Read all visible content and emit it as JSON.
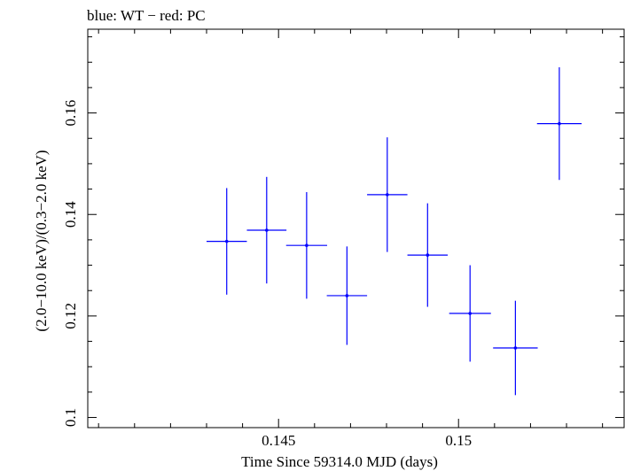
{
  "chart_data": {
    "type": "scatter",
    "title": "blue: WT − red: PC",
    "xlabel": "Time Since 59314.0 MJD (days)",
    "ylabel": "(2.0−10.0 keV)/(0.3−2.0 keV)",
    "xlim": [
      0.1397,
      0.1546
    ],
    "ylim": [
      0.098,
      0.1765
    ],
    "x_ticks": [
      {
        "value": 0.145,
        "label": "0.145"
      },
      {
        "value": 0.15,
        "label": "0.15"
      }
    ],
    "y_ticks": [
      {
        "value": 0.1,
        "label": "0.1"
      },
      {
        "value": 0.12,
        "label": "0.12"
      },
      {
        "value": 0.14,
        "label": "0.14"
      },
      {
        "value": 0.16,
        "label": "0.16"
      }
    ],
    "grid": false,
    "series": [
      {
        "name": "WT",
        "color": "#0000ff",
        "points": [
          {
            "x": 0.14356,
            "xerr": 0.00056,
            "y": 0.1347,
            "yerr": 0.0105
          },
          {
            "x": 0.14467,
            "xerr": 0.00055,
            "y": 0.1369,
            "yerr": 0.0105
          },
          {
            "x": 0.14578,
            "xerr": 0.00057,
            "y": 0.1339,
            "yerr": 0.0105
          },
          {
            "x": 0.1469,
            "xerr": 0.00056,
            "y": 0.124,
            "yerr": 0.0097
          },
          {
            "x": 0.14802,
            "xerr": 0.00056,
            "y": 0.1439,
            "yerr": 0.0113
          },
          {
            "x": 0.14914,
            "xerr": 0.00056,
            "y": 0.132,
            "yerr": 0.0102
          },
          {
            "x": 0.15032,
            "xerr": 0.00058,
            "y": 0.1205,
            "yerr": 0.0095
          },
          {
            "x": 0.15158,
            "xerr": 0.00062,
            "y": 0.1137,
            "yerr": 0.0093
          },
          {
            "x": 0.1528,
            "xerr": 0.00062,
            "y": 0.1579,
            "yerr": 0.0111
          }
        ]
      }
    ]
  }
}
